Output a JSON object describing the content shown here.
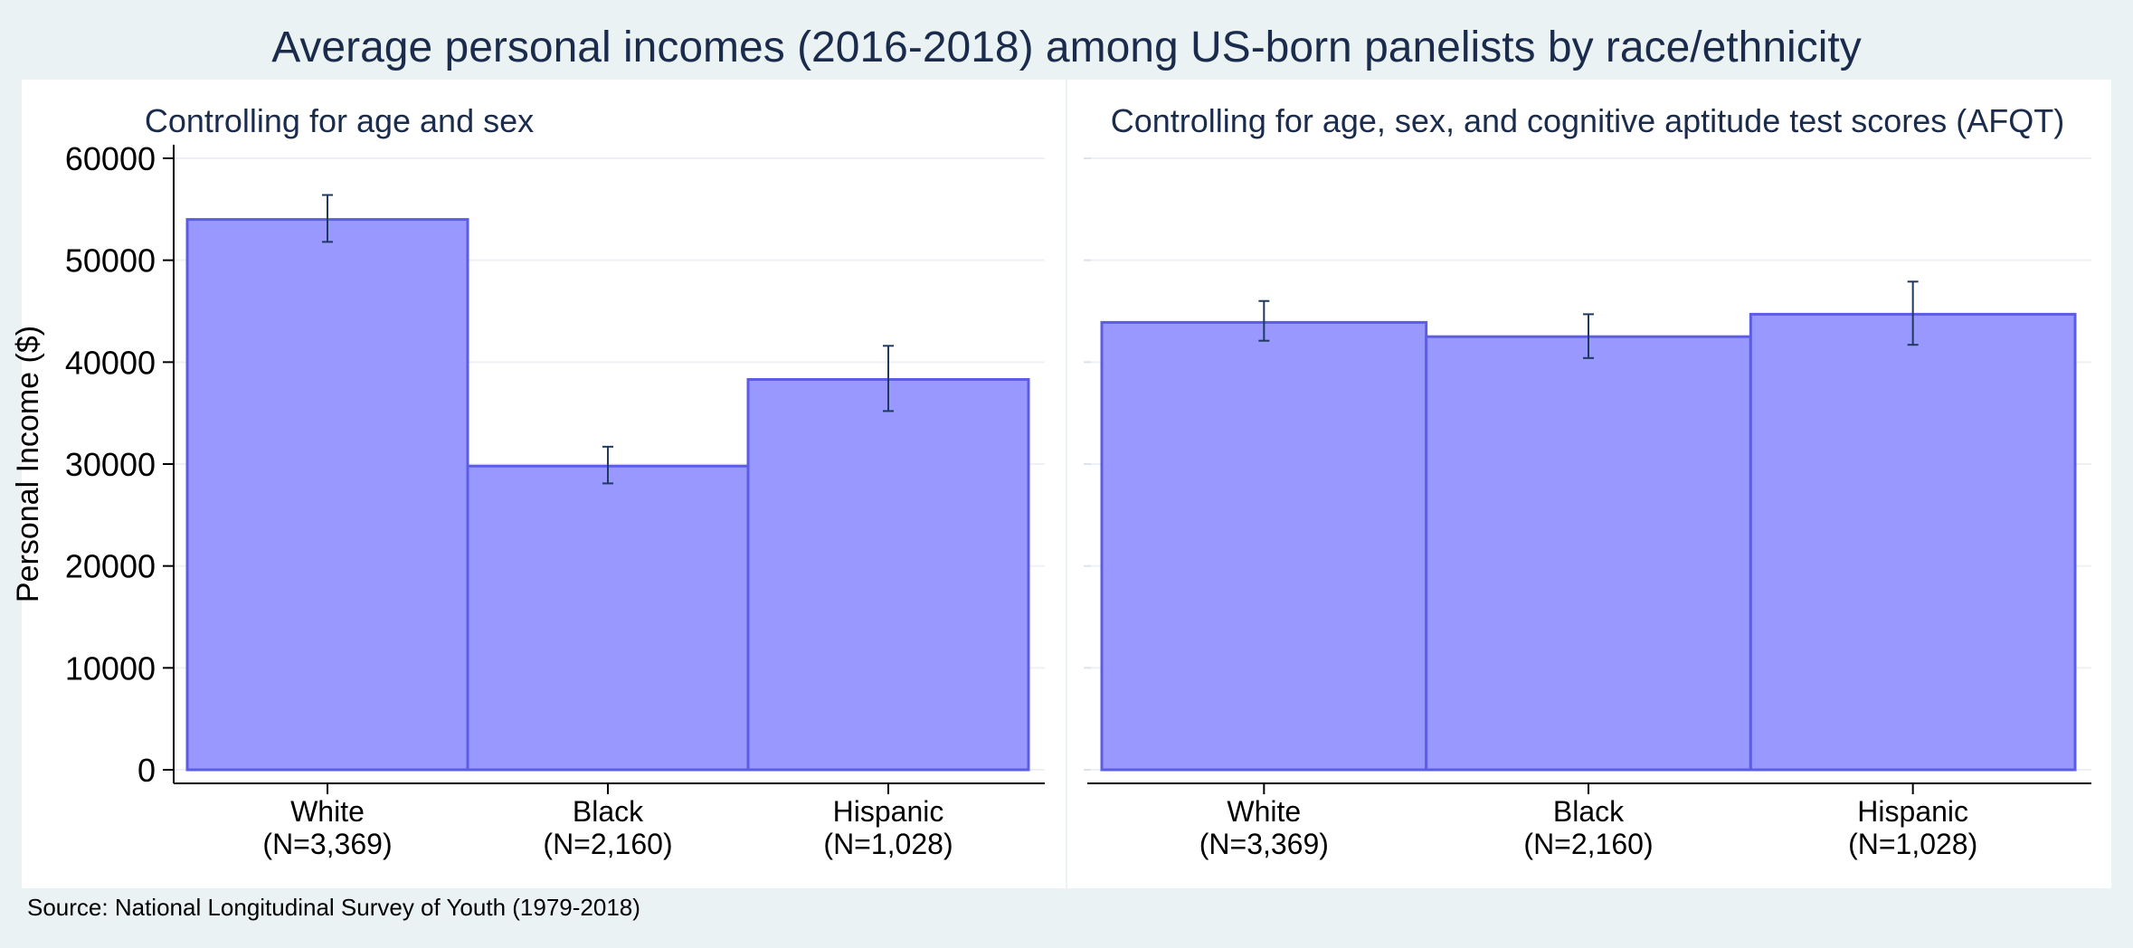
{
  "figure": {
    "title": "Average personal incomes (2016-2018) among US-born panelists by race/ethnicity",
    "source_note": "Source: National Longitudinal Survey of Youth (1979-2018)",
    "ylabel": "Personal Income ($)"
  },
  "colors": {
    "background": "#eaf2f3",
    "panel": "#ffffff",
    "bar_fill": "#9898ff",
    "bar_stroke": "#5c5ce6",
    "error_bar": "#1f3a60",
    "title_text": "#1a2b4c",
    "axis_text": "#000000",
    "grid": "#eef0f4"
  },
  "chart_data": [
    {
      "type": "bar",
      "title": "Controlling for age and sex",
      "categories": [
        "White",
        "Black",
        "Hispanic"
      ],
      "category_notes": [
        "(N=3,369)",
        "(N=2,160)",
        "(N=1,028)"
      ],
      "values": [
        54000,
        29800,
        38300
      ],
      "error_low": [
        51800,
        28100,
        35200
      ],
      "error_high": [
        56400,
        31700,
        41600
      ],
      "ylim": [
        0,
        60000
      ],
      "yticks": [
        "0",
        "10000",
        "20000",
        "30000",
        "40000",
        "50000",
        "60000"
      ],
      "ylabel": "Personal Income ($)",
      "grid": true
    },
    {
      "type": "bar",
      "title": "Controlling for age, sex, and cognitive aptitude test scores (AFQT)",
      "categories": [
        "White",
        "Black",
        "Hispanic"
      ],
      "category_notes": [
        "(N=3,369)",
        "(N=2,160)",
        "(N=1,028)"
      ],
      "values": [
        43900,
        42500,
        44700
      ],
      "error_low": [
        42100,
        40400,
        41700
      ],
      "error_high": [
        46000,
        44700,
        47900
      ],
      "ylim": [
        0,
        60000
      ],
      "yticks": [],
      "grid": true
    }
  ]
}
